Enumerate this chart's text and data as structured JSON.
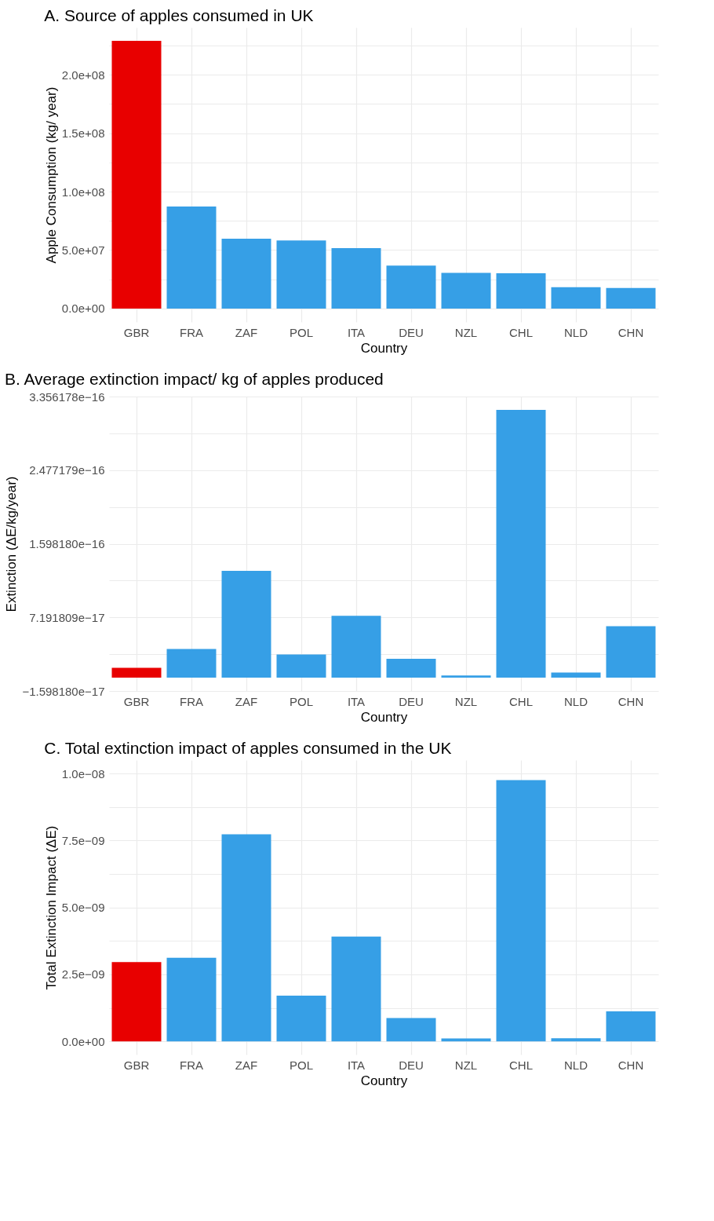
{
  "chart_data": [
    {
      "type": "bar",
      "title": "A. Source of apples consumed in UK",
      "xlabel": "Country",
      "ylabel": "Apple Consumption (kg/ year)",
      "grid": true,
      "categories": [
        "GBR",
        "FRA",
        "ZAF",
        "POL",
        "ITA",
        "DEU",
        "NZL",
        "CHL",
        "NLD",
        "CHN"
      ],
      "values": [
        229000000,
        87300000,
        59800000,
        58300000,
        51700000,
        36700000,
        30500000,
        30100000,
        18300000,
        17600000
      ],
      "colors": [
        "#e80000",
        "#369fe6",
        "#369fe6",
        "#369fe6",
        "#369fe6",
        "#369fe6",
        "#369fe6",
        "#369fe6",
        "#369fe6",
        "#369fe6"
      ],
      "ylim": [
        -11500000,
        240500000
      ],
      "yticks": [
        {
          "value": 0,
          "label": "0.0e+00"
        },
        {
          "value": 25000000,
          "label": null
        },
        {
          "value": 50000000,
          "label": "5.0e+07"
        },
        {
          "value": 75000000,
          "label": null
        },
        {
          "value": 100000000,
          "label": "1.0e+08"
        },
        {
          "value": 125000000,
          "label": null
        },
        {
          "value": 150000000,
          "label": "1.5e+08"
        },
        {
          "value": 175000000,
          "label": null
        },
        {
          "value": 200000000,
          "label": "2.0e+08"
        },
        {
          "value": 225000000,
          "label": null
        }
      ]
    },
    {
      "type": "bar",
      "title": "B. Average extinction impact/ kg of apples produced",
      "xlabel": "Country",
      "ylabel": "Extinction (ΔE/kg/year)",
      "grid": true,
      "categories": [
        "GBR",
        "FRA",
        "ZAF",
        "POL",
        "ITA",
        "DEU",
        "NZL",
        "CHL",
        "NLD",
        "CHN"
      ],
      "values": [
        1.17e-17,
        3.42e-17,
        1.275e-16,
        2.76e-17,
        7.37e-17,
        2.24e-17,
        2.5e-18,
        3.197e-16,
        6e-18,
        6.14e-17
      ],
      "colors": [
        "#e80000",
        "#369fe6",
        "#369fe6",
        "#369fe6",
        "#369fe6",
        "#369fe6",
        "#369fe6",
        "#369fe6",
        "#369fe6",
        "#369fe6"
      ],
      "ylim": [
        -1.59818e-17,
        3.356178e-16
      ],
      "yticks": [
        {
          "value": -1.59818e-17,
          "label": "−1.598180e−17"
        },
        {
          "value": 2.796815e-17,
          "label": null
        },
        {
          "value": 7.191809e-17,
          "label": "7.191809e−17"
        },
        {
          "value": 1.1586805e-16,
          "label": null
        },
        {
          "value": 1.59818e-16,
          "label": "1.598180e−16"
        },
        {
          "value": 2.0376795e-16,
          "label": null
        },
        {
          "value": 2.477179e-16,
          "label": "2.477179e−16"
        },
        {
          "value": 2.9166785e-16,
          "label": null
        },
        {
          "value": 3.356178e-16,
          "label": "3.356178e−16"
        }
      ]
    },
    {
      "type": "bar",
      "title": "C. Total extinction impact of apples consumed in the UK",
      "xlabel": "Country",
      "ylabel": "Total Extinction Impact (ΔE)",
      "grid": true,
      "categories": [
        "GBR",
        "FRA",
        "ZAF",
        "POL",
        "ITA",
        "DEU",
        "NZL",
        "CHL",
        "NLD",
        "CHN"
      ],
      "values": [
        2.96e-09,
        3.12e-09,
        7.73e-09,
        1.71e-09,
        3.91e-09,
        8.7e-10,
        1.1e-10,
        9.75e-09,
        1.2e-10,
        1.12e-09
      ],
      "colors": [
        "#e80000",
        "#369fe6",
        "#369fe6",
        "#369fe6",
        "#369fe6",
        "#369fe6",
        "#369fe6",
        "#369fe6",
        "#369fe6",
        "#369fe6"
      ],
      "ylim": [
        -4.9e-10,
        1.05e-08
      ],
      "yticks": [
        {
          "value": 0,
          "label": "0.0e+00"
        },
        {
          "value": 1.25e-09,
          "label": null
        },
        {
          "value": 2.5e-09,
          "label": "2.5e−09"
        },
        {
          "value": 3.75e-09,
          "label": null
        },
        {
          "value": 5e-09,
          "label": "5.0e−09"
        },
        {
          "value": 6.25e-09,
          "label": null
        },
        {
          "value": 7.5e-09,
          "label": "7.5e−09"
        },
        {
          "value": 8.75e-09,
          "label": null
        },
        {
          "value": 1e-08,
          "label": "1.0e−08"
        }
      ]
    }
  ]
}
